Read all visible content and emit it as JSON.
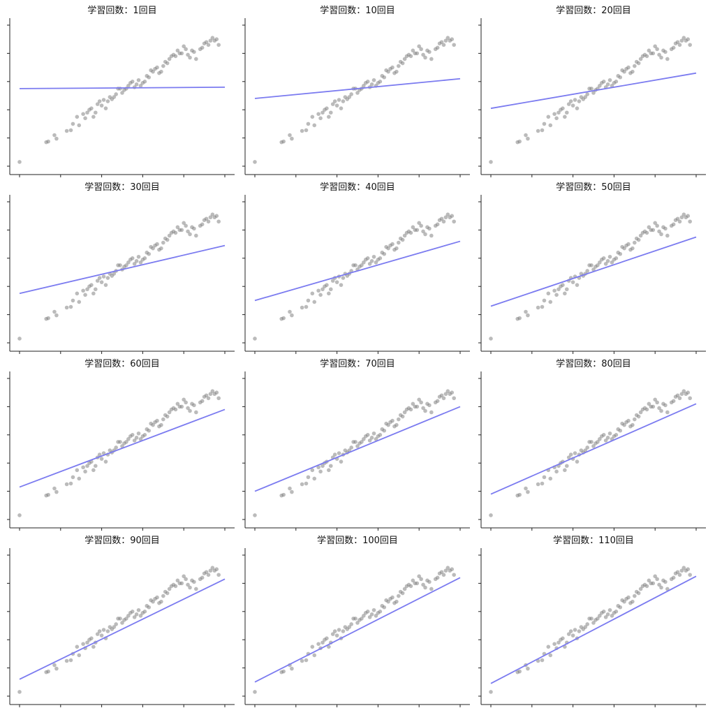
{
  "chart_data": {
    "type": "scatter",
    "grid": false,
    "layout": "3 columns x 4 rows of small multiples",
    "line_color": "#7b7bf0",
    "point_color": "#888888",
    "xlim": [
      0,
      100
    ],
    "ylim": [
      0,
      100
    ],
    "xticks": [
      0,
      20,
      40,
      60,
      80,
      100
    ],
    "yticks": [
      0,
      20,
      40,
      60,
      80,
      100
    ],
    "points": [
      [
        0,
        3
      ],
      [
        13,
        17
      ],
      [
        14,
        17.5
      ],
      [
        17,
        22
      ],
      [
        18,
        19.5
      ],
      [
        23,
        25
      ],
      [
        25,
        25.5
      ],
      [
        26,
        30
      ],
      [
        28,
        35
      ],
      [
        29,
        29
      ],
      [
        31,
        37
      ],
      [
        32,
        34
      ],
      [
        33,
        38
      ],
      [
        34,
        40
      ],
      [
        35,
        41
      ],
      [
        36,
        35
      ],
      [
        37,
        38
      ],
      [
        38,
        44
      ],
      [
        39,
        46
      ],
      [
        40,
        43
      ],
      [
        41,
        47
      ],
      [
        42,
        41
      ],
      [
        43,
        46
      ],
      [
        44,
        49
      ],
      [
        45,
        47.5
      ],
      [
        46,
        49
      ],
      [
        47,
        51
      ],
      [
        48,
        55
      ],
      [
        49,
        55
      ],
      [
        50,
        52
      ],
      [
        51,
        54
      ],
      [
        52,
        55
      ],
      [
        53,
        57
      ],
      [
        54,
        59
      ],
      [
        55,
        60
      ],
      [
        56,
        56
      ],
      [
        57,
        58
      ],
      [
        58,
        61
      ],
      [
        59,
        57
      ],
      [
        60,
        59
      ],
      [
        61,
        60
      ],
      [
        62,
        64
      ],
      [
        63,
        63
      ],
      [
        64,
        68
      ],
      [
        65,
        67
      ],
      [
        66,
        69
      ],
      [
        67,
        70
      ],
      [
        68,
        66
      ],
      [
        69,
        67
      ],
      [
        70,
        71
      ],
      [
        71,
        74
      ],
      [
        72,
        73
      ],
      [
        73,
        76
      ],
      [
        74,
        78
      ],
      [
        75,
        79
      ],
      [
        76,
        78
      ],
      [
        77,
        82
      ],
      [
        78,
        80
      ],
      [
        79,
        80
      ],
      [
        80,
        85
      ],
      [
        81,
        83
      ],
      [
        82,
        79
      ],
      [
        83,
        77
      ],
      [
        84,
        82
      ],
      [
        85,
        81
      ],
      [
        86,
        76
      ],
      [
        88,
        83
      ],
      [
        89,
        84
      ],
      [
        90,
        87
      ],
      [
        91,
        88
      ],
      [
        92,
        86
      ],
      [
        93,
        89
      ],
      [
        94,
        91
      ],
      [
        95,
        89
      ],
      [
        96,
        90
      ],
      [
        97,
        86
      ]
    ],
    "panels": [
      {
        "title": "学習回数：1回目",
        "line": {
          "y0": 55,
          "y1": 56
        }
      },
      {
        "title": "学習回数：10回目",
        "line": {
          "y0": 48,
          "y1": 62
        }
      },
      {
        "title": "学習回数：20回目",
        "line": {
          "y0": 41,
          "y1": 66
        }
      },
      {
        "title": "学習回数：30回目",
        "line": {
          "y0": 35,
          "y1": 69
        }
      },
      {
        "title": "学習回数：40回目",
        "line": {
          "y0": 30,
          "y1": 72
        }
      },
      {
        "title": "学習回数：50回目",
        "line": {
          "y0": 26,
          "y1": 75
        }
      },
      {
        "title": "学習回数：60回目",
        "line": {
          "y0": 23,
          "y1": 78
        }
      },
      {
        "title": "学習回数：70回目",
        "line": {
          "y0": 20,
          "y1": 80
        }
      },
      {
        "title": "学習回数：80回目",
        "line": {
          "y0": 18,
          "y1": 82
        }
      },
      {
        "title": "学習回数：90回目",
        "line": {
          "y0": 12,
          "y1": 83
        }
      },
      {
        "title": "学習回数：100回目",
        "line": {
          "y0": 10,
          "y1": 84
        }
      },
      {
        "title": "学習回数：110回目",
        "line": {
          "y0": 9,
          "y1": 85
        }
      }
    ]
  }
}
